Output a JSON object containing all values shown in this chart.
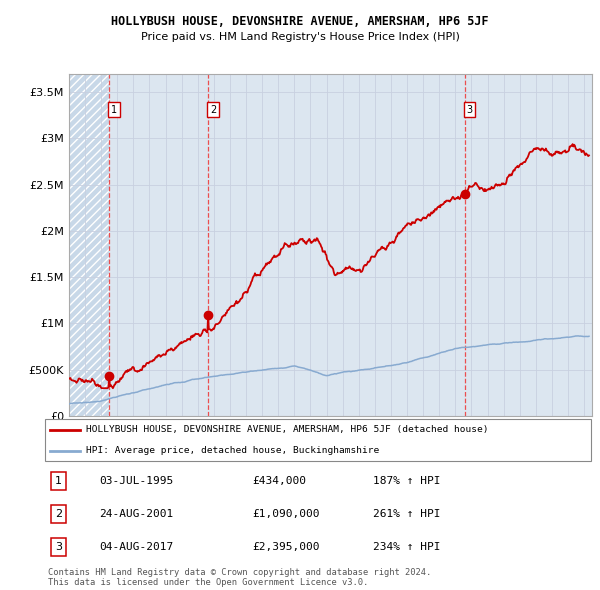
{
  "title": "HOLLYBUSH HOUSE, DEVONSHIRE AVENUE, AMERSHAM, HP6 5JF",
  "subtitle": "Price paid vs. HM Land Registry's House Price Index (HPI)",
  "sale_dates": [
    "1995-07-03",
    "2001-08-24",
    "2017-08-04"
  ],
  "sale_prices": [
    434000,
    1090000,
    2395000
  ],
  "sale_years": [
    1995.5,
    2001.65,
    2017.58
  ],
  "sale_labels": [
    "1",
    "2",
    "3"
  ],
  "sale_color": "#cc0000",
  "hpi_color": "#88aad0",
  "grid_color": "#c8d0e0",
  "dashed_line_color": "#ee3333",
  "ylabel_ticks": [
    "£0",
    "£500K",
    "£1M",
    "£1.5M",
    "£2M",
    "£2.5M",
    "£3M",
    "£3.5M"
  ],
  "ylabel_values": [
    0,
    500000,
    1000000,
    1500000,
    2000000,
    2500000,
    3000000,
    3500000
  ],
  "ylim": [
    0,
    3700000
  ],
  "xlim_start": 1993,
  "xlim_end": 2025.5,
  "bg_color": "#dce6f0",
  "hatch_color": "#c8d8e8",
  "legend_line1": "HOLLYBUSH HOUSE, DEVONSHIRE AVENUE, AMERSHAM, HP6 5JF (detached house)",
  "legend_line2": "HPI: Average price, detached house, Buckinghamshire",
  "table_rows": [
    {
      "num": "1",
      "date": "03-JUL-1995",
      "price": "£434,000",
      "hpi": "187% ↑ HPI"
    },
    {
      "num": "2",
      "date": "24-AUG-2001",
      "price": "£1,090,000",
      "hpi": "261% ↑ HPI"
    },
    {
      "num": "3",
      "date": "04-AUG-2017",
      "price": "£2,395,000",
      "hpi": "234% ↑ HPI"
    }
  ],
  "footnote": "Contains HM Land Registry data © Crown copyright and database right 2024.\nThis data is licensed under the Open Government Licence v3.0."
}
